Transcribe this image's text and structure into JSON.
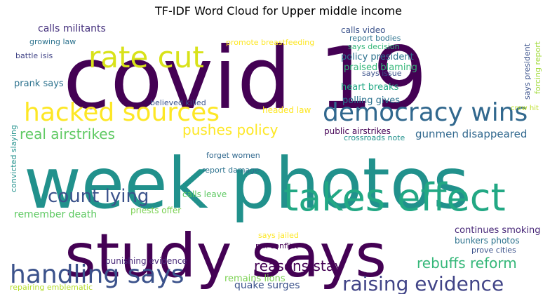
{
  "title": "TF-IDF Word Cloud for Upper middle income",
  "chart_data": {
    "type": "wordcloud",
    "title": "TF-IDF Word Cloud for Upper middle income",
    "background": "#ffffff",
    "words": [
      {
        "text": "covid 19",
        "weight": 1.0,
        "color": "#440154"
      },
      {
        "text": "week photos",
        "weight": 0.98,
        "color": "#21918c"
      },
      {
        "text": "study says",
        "weight": 0.92,
        "color": "#440154"
      },
      {
        "text": "takes effect",
        "weight": 0.6,
        "color": "#22a884"
      },
      {
        "text": "rate cut",
        "weight": 0.52,
        "color": "#d8e219"
      },
      {
        "text": "hacked sources",
        "weight": 0.44,
        "color": "#fde725"
      },
      {
        "text": "democracy wins",
        "weight": 0.44,
        "color": "#31688e"
      },
      {
        "text": "handling says",
        "weight": 0.44,
        "color": "#3b528b"
      },
      {
        "text": "raising evidence",
        "weight": 0.34,
        "color": "#414487"
      },
      {
        "text": "count lying",
        "weight": 0.32,
        "color": "#3b528b"
      },
      {
        "text": "real airstrikes",
        "weight": 0.22,
        "color": "#5ec962"
      },
      {
        "text": "pushes policy",
        "weight": 0.22,
        "color": "#fde725"
      },
      {
        "text": "reasons stay",
        "weight": 0.22,
        "color": "#440154"
      },
      {
        "text": "rebuffs reform",
        "weight": 0.22,
        "color": "#35b779"
      },
      {
        "text": "gunmen disappeared",
        "weight": 0.18,
        "color": "#31688e"
      },
      {
        "text": "remember death",
        "weight": 0.16,
        "color": "#5ec962"
      },
      {
        "text": "quake surges",
        "weight": 0.16,
        "color": "#3b528b"
      },
      {
        "text": "calls militants",
        "weight": 0.14,
        "color": "#46327e"
      },
      {
        "text": "policy president",
        "weight": 0.14,
        "color": "#2c728e"
      },
      {
        "text": "praised blaming",
        "weight": 0.14,
        "color": "#35b779"
      },
      {
        "text": "polling gives",
        "weight": 0.14,
        "color": "#2c728e"
      },
      {
        "text": "heart breaks",
        "weight": 0.14,
        "color": "#22a884"
      },
      {
        "text": "prank says",
        "weight": 0.14,
        "color": "#2c728e"
      },
      {
        "text": "remains lions",
        "weight": 0.14,
        "color": "#7ad151"
      },
      {
        "text": "continues smoking",
        "weight": 0.13,
        "color": "#482878"
      },
      {
        "text": "calls video",
        "weight": 0.12,
        "color": "#3b528b"
      },
      {
        "text": "public airstrikes",
        "weight": 0.12,
        "color": "#440154"
      },
      {
        "text": "priests offer",
        "weight": 0.12,
        "color": "#7ad151"
      },
      {
        "text": "calls leave",
        "weight": 0.12,
        "color": "#5ec962"
      },
      {
        "text": "bunkers photos",
        "weight": 0.12,
        "color": "#2c728e"
      },
      {
        "text": "punishing evidence",
        "weight": 0.12,
        "color": "#482878"
      },
      {
        "text": "headed law",
        "weight": 0.11,
        "color": "#fde725"
      },
      {
        "text": "growing law",
        "weight": 0.1,
        "color": "#2c728e"
      },
      {
        "text": "battle isis",
        "weight": 0.1,
        "color": "#414487"
      },
      {
        "text": "promote breastfeeding",
        "weight": 0.1,
        "color": "#fde725"
      },
      {
        "text": "report bodies",
        "weight": 0.1,
        "color": "#2c728e"
      },
      {
        "text": "says decision",
        "weight": 0.1,
        "color": "#35b779"
      },
      {
        "text": "says issue",
        "weight": 0.1,
        "color": "#3b528b"
      },
      {
        "text": "believed killed",
        "weight": 0.1,
        "color": "#3b528b"
      },
      {
        "text": "convicted slaying",
        "weight": 0.1,
        "color": "#21918c"
      },
      {
        "text": "crossroads note",
        "weight": 0.1,
        "color": "#21918c"
      },
      {
        "text": "forget women",
        "weight": 0.1,
        "color": "#31688e"
      },
      {
        "text": "report damage",
        "weight": 0.1,
        "color": "#2c728e"
      },
      {
        "text": "pm conflict",
        "weight": 0.1,
        "color": "#440154"
      },
      {
        "text": "says jailed",
        "weight": 0.1,
        "color": "#fde725"
      },
      {
        "text": "prove cities",
        "weight": 0.1,
        "color": "#3b528b"
      },
      {
        "text": "repairing emblematic",
        "weight": 0.1,
        "color": "#b5de2b"
      },
      {
        "text": "says president",
        "weight": 0.1,
        "color": "#3b528b"
      },
      {
        "text": "forcing report",
        "weight": 0.1,
        "color": "#a0da39"
      },
      {
        "text": "crew hit",
        "weight": 0.1,
        "color": "#bddf26"
      }
    ]
  }
}
